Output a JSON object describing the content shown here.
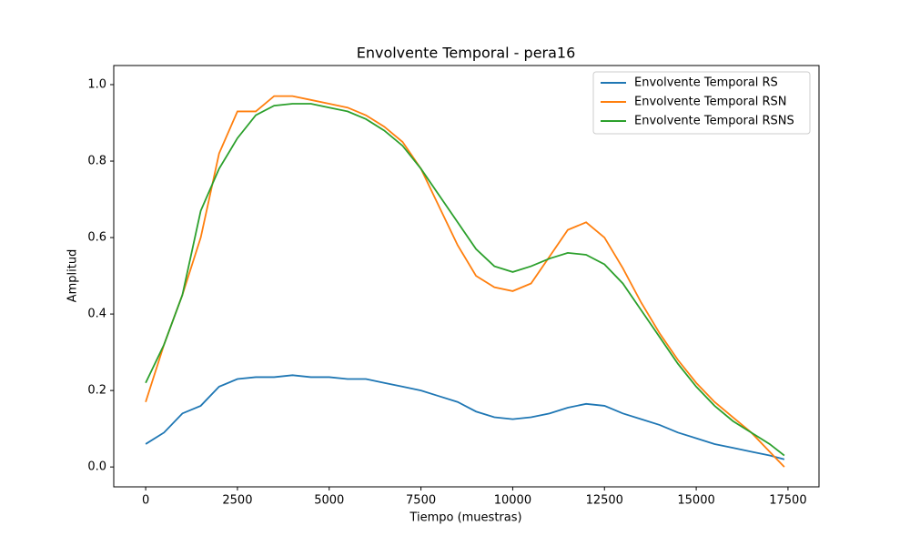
{
  "chart_data": {
    "type": "line",
    "title": "Envolvente Temporal - pera16",
    "x_label": "Tiempo (muestras)",
    "y_label": "Amplitud",
    "x": [
      0,
      500,
      1000,
      1500,
      2000,
      2500,
      3000,
      3500,
      4000,
      4500,
      5000,
      5500,
      6000,
      6500,
      7000,
      7500,
      8000,
      8500,
      9000,
      9500,
      10000,
      10500,
      11000,
      11500,
      12000,
      12500,
      13000,
      13500,
      14000,
      14500,
      15000,
      15500,
      16000,
      16500,
      17000,
      17400
    ],
    "series": [
      {
        "name": "Envolvente Temporal RS",
        "color": "#1f77b4",
        "values": [
          0.06,
          0.09,
          0.14,
          0.16,
          0.21,
          0.23,
          0.235,
          0.235,
          0.24,
          0.235,
          0.235,
          0.23,
          0.23,
          0.22,
          0.21,
          0.2,
          0.185,
          0.17,
          0.145,
          0.13,
          0.125,
          0.13,
          0.14,
          0.155,
          0.165,
          0.16,
          0.14,
          0.125,
          0.11,
          0.09,
          0.075,
          0.06,
          0.05,
          0.04,
          0.03,
          0.02
        ]
      },
      {
        "name": "Envolvente Temporal RSN",
        "color": "#ff7f0e",
        "values": [
          0.17,
          0.32,
          0.45,
          0.6,
          0.82,
          0.93,
          0.93,
          0.97,
          0.97,
          0.96,
          0.95,
          0.94,
          0.92,
          0.89,
          0.85,
          0.78,
          0.68,
          0.58,
          0.5,
          0.47,
          0.46,
          0.48,
          0.55,
          0.62,
          0.64,
          0.6,
          0.52,
          0.43,
          0.35,
          0.28,
          0.22,
          0.17,
          0.13,
          0.09,
          0.04,
          0.0
        ]
      },
      {
        "name": "Envolvente Temporal RSNS",
        "color": "#2ca02c",
        "values": [
          0.22,
          0.32,
          0.45,
          0.67,
          0.78,
          0.86,
          0.92,
          0.945,
          0.95,
          0.95,
          0.94,
          0.93,
          0.91,
          0.88,
          0.84,
          0.78,
          0.71,
          0.64,
          0.57,
          0.525,
          0.51,
          0.525,
          0.545,
          0.56,
          0.555,
          0.53,
          0.48,
          0.41,
          0.34,
          0.27,
          0.21,
          0.16,
          0.12,
          0.09,
          0.06,
          0.03
        ]
      }
    ],
    "xlim": [
      -870,
      18345
    ],
    "ylim": [
      -0.052,
      1.05
    ],
    "xticks": [
      0,
      2500,
      5000,
      7500,
      10000,
      12500,
      15000,
      17500
    ],
    "yticks": [
      {
        "value": 0,
        "label": "0.0"
      },
      0.2,
      0.4,
      0.6,
      0.8,
      {
        "value": 1,
        "label": "1.0"
      }
    ],
    "legend": "upper right"
  }
}
